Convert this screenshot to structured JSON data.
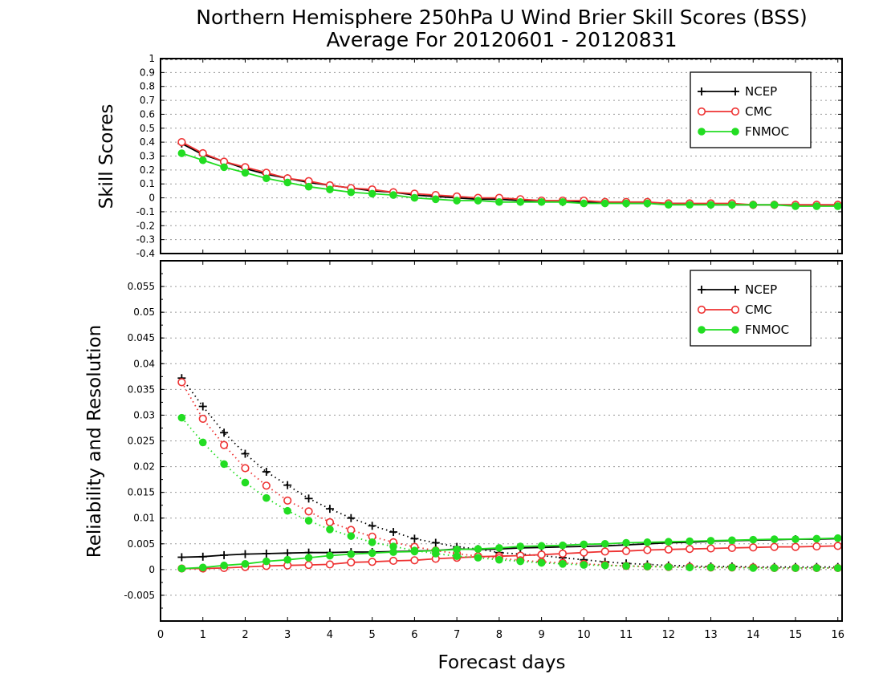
{
  "title": "Northern Hemisphere 250hPa U Wind Brier Skill Scores (BSS)",
  "subtitle": "Average For 20120601 - 20120831",
  "xlabel": "Forecast days",
  "colors": {
    "NCEP": "#000000",
    "CMC": "#ee3333",
    "FNMOC": "#22dd22"
  },
  "chart_data": [
    {
      "type": "line",
      "ylabel": "Skill Scores",
      "xlim": [
        0,
        16.1
      ],
      "ylim": [
        -0.4,
        1.0
      ],
      "ytick_labels": [
        "-0.4",
        "-0.3",
        "-0.2",
        "-0.1",
        "0",
        "0.1",
        "0.2",
        "0.3",
        "0.4",
        "0.5",
        "0.6",
        "0.7",
        "0.8",
        "0.9",
        "1"
      ],
      "ytick_values": [
        -0.4,
        -0.3,
        -0.2,
        -0.1,
        0,
        0.1,
        0.2,
        0.3,
        0.4,
        0.5,
        0.6,
        0.7,
        0.8,
        0.9,
        1.0
      ],
      "x": [
        0.5,
        1,
        1.5,
        2,
        2.5,
        3,
        3.5,
        4,
        4.5,
        5,
        5.5,
        6,
        6.5,
        7,
        7.5,
        8,
        8.5,
        9,
        9.5,
        10,
        10.5,
        11,
        11.5,
        12,
        12.5,
        13,
        13.5,
        14,
        14.5,
        15,
        15.5,
        16
      ],
      "grid": true,
      "legend": "top-right",
      "series": [
        {
          "name": "NCEP",
          "marker": "plus",
          "style": "solid",
          "values": [
            0.39,
            0.31,
            0.26,
            0.21,
            0.17,
            0.14,
            0.11,
            0.09,
            0.07,
            0.05,
            0.04,
            0.02,
            0.01,
            0.0,
            -0.01,
            -0.01,
            -0.02,
            -0.02,
            -0.03,
            -0.03,
            -0.03,
            -0.04,
            -0.04,
            -0.04,
            -0.04,
            -0.05,
            -0.05,
            -0.05,
            -0.05,
            -0.05,
            -0.05,
            -0.05
          ]
        },
        {
          "name": "CMC",
          "marker": "open-circle",
          "style": "solid",
          "values": [
            0.4,
            0.32,
            0.26,
            0.22,
            0.18,
            0.14,
            0.12,
            0.09,
            0.07,
            0.06,
            0.04,
            0.03,
            0.02,
            0.01,
            0.0,
            0.0,
            -0.01,
            -0.02,
            -0.02,
            -0.02,
            -0.03,
            -0.03,
            -0.03,
            -0.04,
            -0.04,
            -0.04,
            -0.04,
            -0.05,
            -0.05,
            -0.05,
            -0.05,
            -0.05
          ]
        },
        {
          "name": "FNMOC",
          "marker": "filled-circle",
          "style": "solid",
          "values": [
            0.32,
            0.27,
            0.22,
            0.18,
            0.14,
            0.11,
            0.08,
            0.06,
            0.04,
            0.03,
            0.02,
            0.0,
            -0.01,
            -0.02,
            -0.02,
            -0.03,
            -0.03,
            -0.03,
            -0.03,
            -0.04,
            -0.04,
            -0.04,
            -0.04,
            -0.05,
            -0.05,
            -0.05,
            -0.05,
            -0.05,
            -0.05,
            -0.06,
            -0.06,
            -0.06
          ]
        }
      ]
    },
    {
      "type": "line",
      "ylabel": "Reliability and Resolution",
      "xlim": [
        0,
        16.1
      ],
      "ylim": [
        -0.01,
        0.06
      ],
      "ytick_labels": [
        "-0.005",
        "0",
        "0.005",
        "0.01",
        "0.015",
        "0.02",
        "0.025",
        "0.03",
        "0.035",
        "0.04",
        "0.045",
        "0.05",
        "0.055"
      ],
      "ytick_values": [
        -0.005,
        0,
        0.005,
        0.01,
        0.015,
        0.02,
        0.025,
        0.03,
        0.035,
        0.04,
        0.045,
        0.05,
        0.055
      ],
      "xtick_labels": [
        "0",
        "1",
        "2",
        "3",
        "4",
        "5",
        "6",
        "7",
        "8",
        "9",
        "10",
        "11",
        "12",
        "13",
        "14",
        "15",
        "16"
      ],
      "x": [
        0.5,
        1,
        1.5,
        2,
        2.5,
        3,
        3.5,
        4,
        4.5,
        5,
        5.5,
        6,
        6.5,
        7,
        7.5,
        8,
        8.5,
        9,
        9.5,
        10,
        10.5,
        11,
        11.5,
        12,
        12.5,
        13,
        13.5,
        14,
        14.5,
        15,
        15.5,
        16
      ],
      "grid": true,
      "legend": "top-right",
      "series": [
        {
          "name": "NCEP",
          "marker": "plus",
          "style": "solid",
          "kind": "resolution",
          "values": [
            0.0024,
            0.0025,
            0.0028,
            0.003,
            0.0031,
            0.0032,
            0.0033,
            0.0033,
            0.0034,
            0.0034,
            0.0035,
            0.0036,
            0.0037,
            0.004,
            0.0039,
            0.004,
            0.0042,
            0.0043,
            0.0044,
            0.0045,
            0.0046,
            0.0048,
            0.005,
            0.0052,
            0.0053,
            0.0055,
            0.0056,
            0.0057,
            0.0058,
            0.0059,
            0.0059,
            0.006
          ]
        },
        {
          "name": "NCEP",
          "marker": "plus",
          "style": "dotted",
          "kind": "reliability",
          "values": [
            0.0372,
            0.0317,
            0.0266,
            0.0225,
            0.019,
            0.0164,
            0.0138,
            0.0118,
            0.01,
            0.0085,
            0.0073,
            0.006,
            0.0052,
            0.0044,
            0.004,
            0.0033,
            0.003,
            0.0027,
            0.0023,
            0.0019,
            0.0015,
            0.0012,
            0.001,
            0.0008,
            0.0007,
            0.0006,
            0.0006,
            0.0005,
            0.0005,
            0.0005,
            0.0005,
            0.0005
          ]
        },
        {
          "name": "CMC",
          "marker": "open-circle",
          "style": "solid",
          "kind": "resolution",
          "values": [
            0.0002,
            0.0002,
            0.0003,
            0.0005,
            0.0007,
            0.0008,
            0.0009,
            0.001,
            0.0014,
            0.0015,
            0.0017,
            0.0018,
            0.0021,
            0.0023,
            0.0025,
            0.0026,
            0.0027,
            0.0029,
            0.0031,
            0.0033,
            0.0035,
            0.0036,
            0.0038,
            0.0039,
            0.004,
            0.0041,
            0.0042,
            0.0043,
            0.0044,
            0.0044,
            0.0045,
            0.0046
          ]
        },
        {
          "name": "CMC",
          "marker": "open-circle",
          "style": "dotted",
          "kind": "reliability",
          "values": [
            0.0364,
            0.0293,
            0.0242,
            0.0197,
            0.0163,
            0.0134,
            0.0113,
            0.0092,
            0.0077,
            0.0064,
            0.0053,
            0.0044,
            0.0037,
            0.0031,
            0.0026,
            0.0022,
            0.0018,
            0.0015,
            0.0013,
            0.0011,
            0.0009,
            0.0007,
            0.0006,
            0.0005,
            0.0005,
            0.0004,
            0.0004,
            0.0004,
            0.0003,
            0.0003,
            0.0003,
            0.0003
          ]
        },
        {
          "name": "FNMOC",
          "marker": "filled-circle",
          "style": "solid",
          "kind": "resolution",
          "values": [
            0.0002,
            0.0004,
            0.0008,
            0.0011,
            0.0016,
            0.0019,
            0.0023,
            0.0027,
            0.003,
            0.0032,
            0.0034,
            0.0035,
            0.0037,
            0.0039,
            0.004,
            0.0042,
            0.0045,
            0.0046,
            0.0047,
            0.0049,
            0.005,
            0.0052,
            0.0053,
            0.0054,
            0.0055,
            0.0056,
            0.0057,
            0.0058,
            0.0059,
            0.0059,
            0.006,
            0.0061
          ]
        },
        {
          "name": "FNMOC",
          "marker": "filled-circle",
          "style": "dotted",
          "kind": "reliability",
          "values": [
            0.0295,
            0.0247,
            0.0205,
            0.0169,
            0.0139,
            0.0114,
            0.0095,
            0.0078,
            0.0065,
            0.0053,
            0.0045,
            0.0037,
            0.0031,
            0.0026,
            0.0023,
            0.0019,
            0.0016,
            0.0013,
            0.0011,
            0.0009,
            0.0008,
            0.0007,
            0.0006,
            0.0005,
            0.0004,
            0.0004,
            0.0004,
            0.0003,
            0.0003,
            0.0003,
            0.0003,
            0.0003
          ]
        }
      ]
    }
  ]
}
